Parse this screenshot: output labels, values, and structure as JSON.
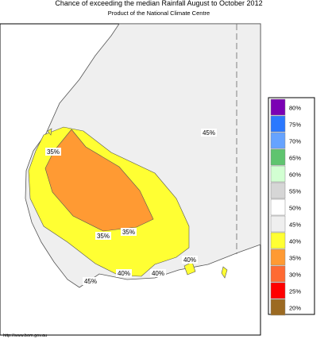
{
  "title": "Chance of exceeding the median Rainfall August to October 2012",
  "subtitle": "Product of the National Climate Centre",
  "legend": [
    {
      "label": "80%",
      "color": "#7b00b4"
    },
    {
      "label": "75%",
      "color": "#2a78ff"
    },
    {
      "label": "70%",
      "color": "#66a3ff"
    },
    {
      "label": "65%",
      "color": "#5fc46f"
    },
    {
      "label": "60%",
      "color": "#d2ffd2"
    },
    {
      "label": "55%",
      "color": "#d6d6d6"
    },
    {
      "label": "50%",
      "color": "#ffffff"
    },
    {
      "label": "45%",
      "color": "#efefef"
    },
    {
      "label": "40%",
      "color": "#ffff33"
    },
    {
      "label": "35%",
      "color": "#ff9a33"
    },
    {
      "label": "30%",
      "color": "#ff6a33"
    },
    {
      "label": "25%",
      "color": "#ff0000"
    },
    {
      "label": "20%",
      "color": "#9c6a22"
    }
  ],
  "map_labels": [
    "45%",
    "35%",
    "35%",
    "35%",
    "40%",
    "40%",
    "40%",
    "45%"
  ],
  "footer": "http://www.bom.gov.au"
}
